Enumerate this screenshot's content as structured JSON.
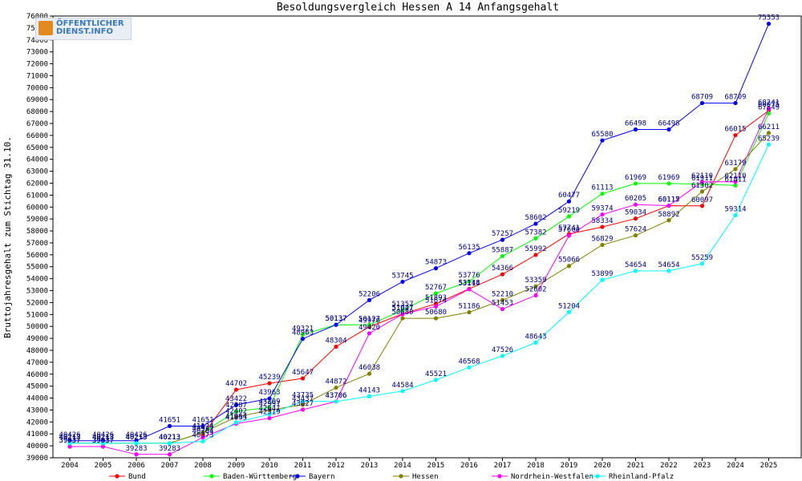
{
  "logo": {
    "line1": "ÖFFENTLICHER",
    "line2": "DIENST.INFO"
  },
  "chart_data": {
    "type": "line",
    "title": "Besoldungsvergleich Hessen A 14 Anfangsgehalt",
    "xlabel": "",
    "ylabel": "Bruttojahresgehalt zum Stichtag 31.10.",
    "categories": [
      "2004",
      "2005",
      "2006",
      "2007",
      "2008",
      "2009",
      "2010",
      "2011",
      "2012",
      "2013",
      "2014",
      "2015",
      "2016",
      "2017",
      "2018",
      "2019",
      "2020",
      "2021",
      "2022",
      "2023",
      "2024",
      "2025"
    ],
    "ylim": [
      39000,
      76000
    ],
    "ytick_step": 1000,
    "grid": false,
    "legend_position": "bottom",
    "series": [
      {
        "name": "Bund",
        "color": "#ff0000",
        "values": [
          39937,
          39937,
          null,
          null,
          40922,
          44702,
          45239,
          45647,
          48304,
          49970,
          51047,
          51893,
          53148,
          54366,
          55992,
          57741,
          58334,
          59034,
          60115,
          60097,
          66015,
          68075
        ]
      },
      {
        "name": "Baden-Württemberg",
        "color": "#00ff00",
        "values": [
          40213,
          40213,
          40213,
          40213,
          41124,
          42887,
          43209,
          49321,
          50137,
          50127,
          51357,
          52767,
          53776,
          55887,
          57382,
          59219,
          61113,
          61969,
          61969,
          61911,
          61811,
          67849
        ]
      },
      {
        "name": "Bayern",
        "color": "#0000ff",
        "values": [
          40426,
          40426,
          40426,
          41651,
          41651,
          43422,
          43963,
          48963,
          50137,
          52206,
          53745,
          54873,
          56135,
          57257,
          58602,
          60477,
          65580,
          66498,
          66498,
          68709,
          68709,
          75353
        ]
      },
      {
        "name": "Hessen",
        "color": "#808000",
        "values": [
          40213,
          40213,
          40213,
          40213,
          41124,
          42402,
          42991,
          43437,
          44872,
          46038,
          50680,
          50680,
          51186,
          52210,
          53359,
          55066,
          56829,
          57624,
          58892,
          61302,
          63179,
          66211
        ]
      },
      {
        "name": "Nordrhein-Westfalen",
        "color": "#ff00ff",
        "values": [
          39937,
          39937,
          39283,
          39283,
          40704,
          41853,
          42319,
          43027,
          43706,
          49420,
          51027,
          51674,
          53114,
          51453,
          52602,
          57600,
          59374,
          60205,
          60117,
          62110,
          62110,
          68241
        ]
      },
      {
        "name": "Rheinland-Pfalz",
        "color": "#00ffff",
        "values": [
          40213,
          40213,
          40213,
          40213,
          40373,
          41964,
          42641,
          43735,
          43706,
          44143,
          44584,
          45521,
          46568,
          47526,
          48643,
          51204,
          53899,
          54654,
          54654,
          55259,
          59314,
          65239
        ]
      }
    ]
  }
}
